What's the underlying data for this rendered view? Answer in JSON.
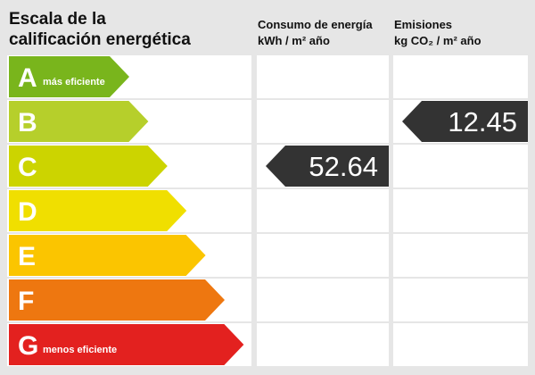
{
  "title": [
    "Escala de la",
    "calificación energética"
  ],
  "columns": [
    {
      "title": "Consumo de energía",
      "unit": "kWh / m² año",
      "rating": {
        "grade": "C",
        "value": 52.64
      }
    },
    {
      "title": "Emisiones",
      "unit": "kg CO₂ / m² año",
      "rating": {
        "grade": "B",
        "value": 12.45
      }
    }
  ],
  "grades": [
    {
      "letter": "A",
      "note": "más eficiente",
      "color": "#79b51c"
    },
    {
      "letter": "B",
      "color": "#b6cf2b"
    },
    {
      "letter": "C",
      "color": "#ccd400"
    },
    {
      "letter": "D",
      "color": "#f0df00"
    },
    {
      "letter": "E",
      "color": "#fbc500"
    },
    {
      "letter": "F",
      "color": "#ee7710"
    },
    {
      "letter": "G",
      "note": "menos eficiente",
      "color": "#e3211f"
    }
  ]
}
